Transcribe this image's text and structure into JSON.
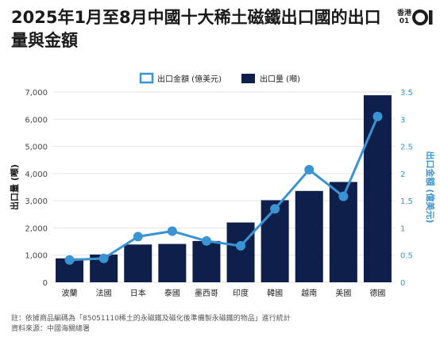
{
  "header": {
    "title": "2025年1月至8月中國十大稀土磁鐵出口國的出口量與金額",
    "logo_text": "香港01"
  },
  "legend": {
    "line_label": "出口金額 (億美元)",
    "bar_label": "出口量 (噸)"
  },
  "footnotes": {
    "note": "註：依據商品編碼為「85051110稀土的永磁鐵及磁化後準備製永磁鐵的物品」進行統計",
    "source": "資料來源：中國海關總署"
  },
  "colors": {
    "bar": "#0f1f4b",
    "line": "#3a94d4",
    "grid": "#e3e3e3",
    "axis_text": "#444444"
  },
  "chart_data": {
    "type": "bar",
    "title": "2025年1月至8月中國十大稀土磁鐵出口國的出口量與金額",
    "categories": [
      "波蘭",
      "法國",
      "日本",
      "泰國",
      "墨西哥",
      "印度",
      "韓國",
      "越南",
      "美國",
      "德國"
    ],
    "series": [
      {
        "name": "出口量 (噸)",
        "type": "bar",
        "axis": "left",
        "values": [
          880,
          1020,
          1390,
          1410,
          1520,
          2200,
          3020,
          3360,
          3690,
          6880
        ]
      },
      {
        "name": "出口金額 (億美元)",
        "type": "line",
        "axis": "right",
        "values": [
          0.41,
          0.44,
          0.84,
          0.94,
          0.76,
          0.67,
          1.35,
          2.07,
          1.58,
          3.05
        ]
      }
    ],
    "ylabel": "出口量 (噸)",
    "y2label": "出口金額 (億美元)",
    "ylim": [
      0,
      7000
    ],
    "y2lim": [
      0,
      3.5
    ],
    "yticks": [
      "0",
      "1,000",
      "2,000",
      "3,000",
      "4,000",
      "5,000",
      "6,000",
      "7,000"
    ],
    "y2ticks": [
      "0",
      "0.5",
      "1",
      "1.5",
      "2",
      "2.5",
      "3",
      "3.5"
    ],
    "grid": true,
    "legend_position": "top-center"
  }
}
